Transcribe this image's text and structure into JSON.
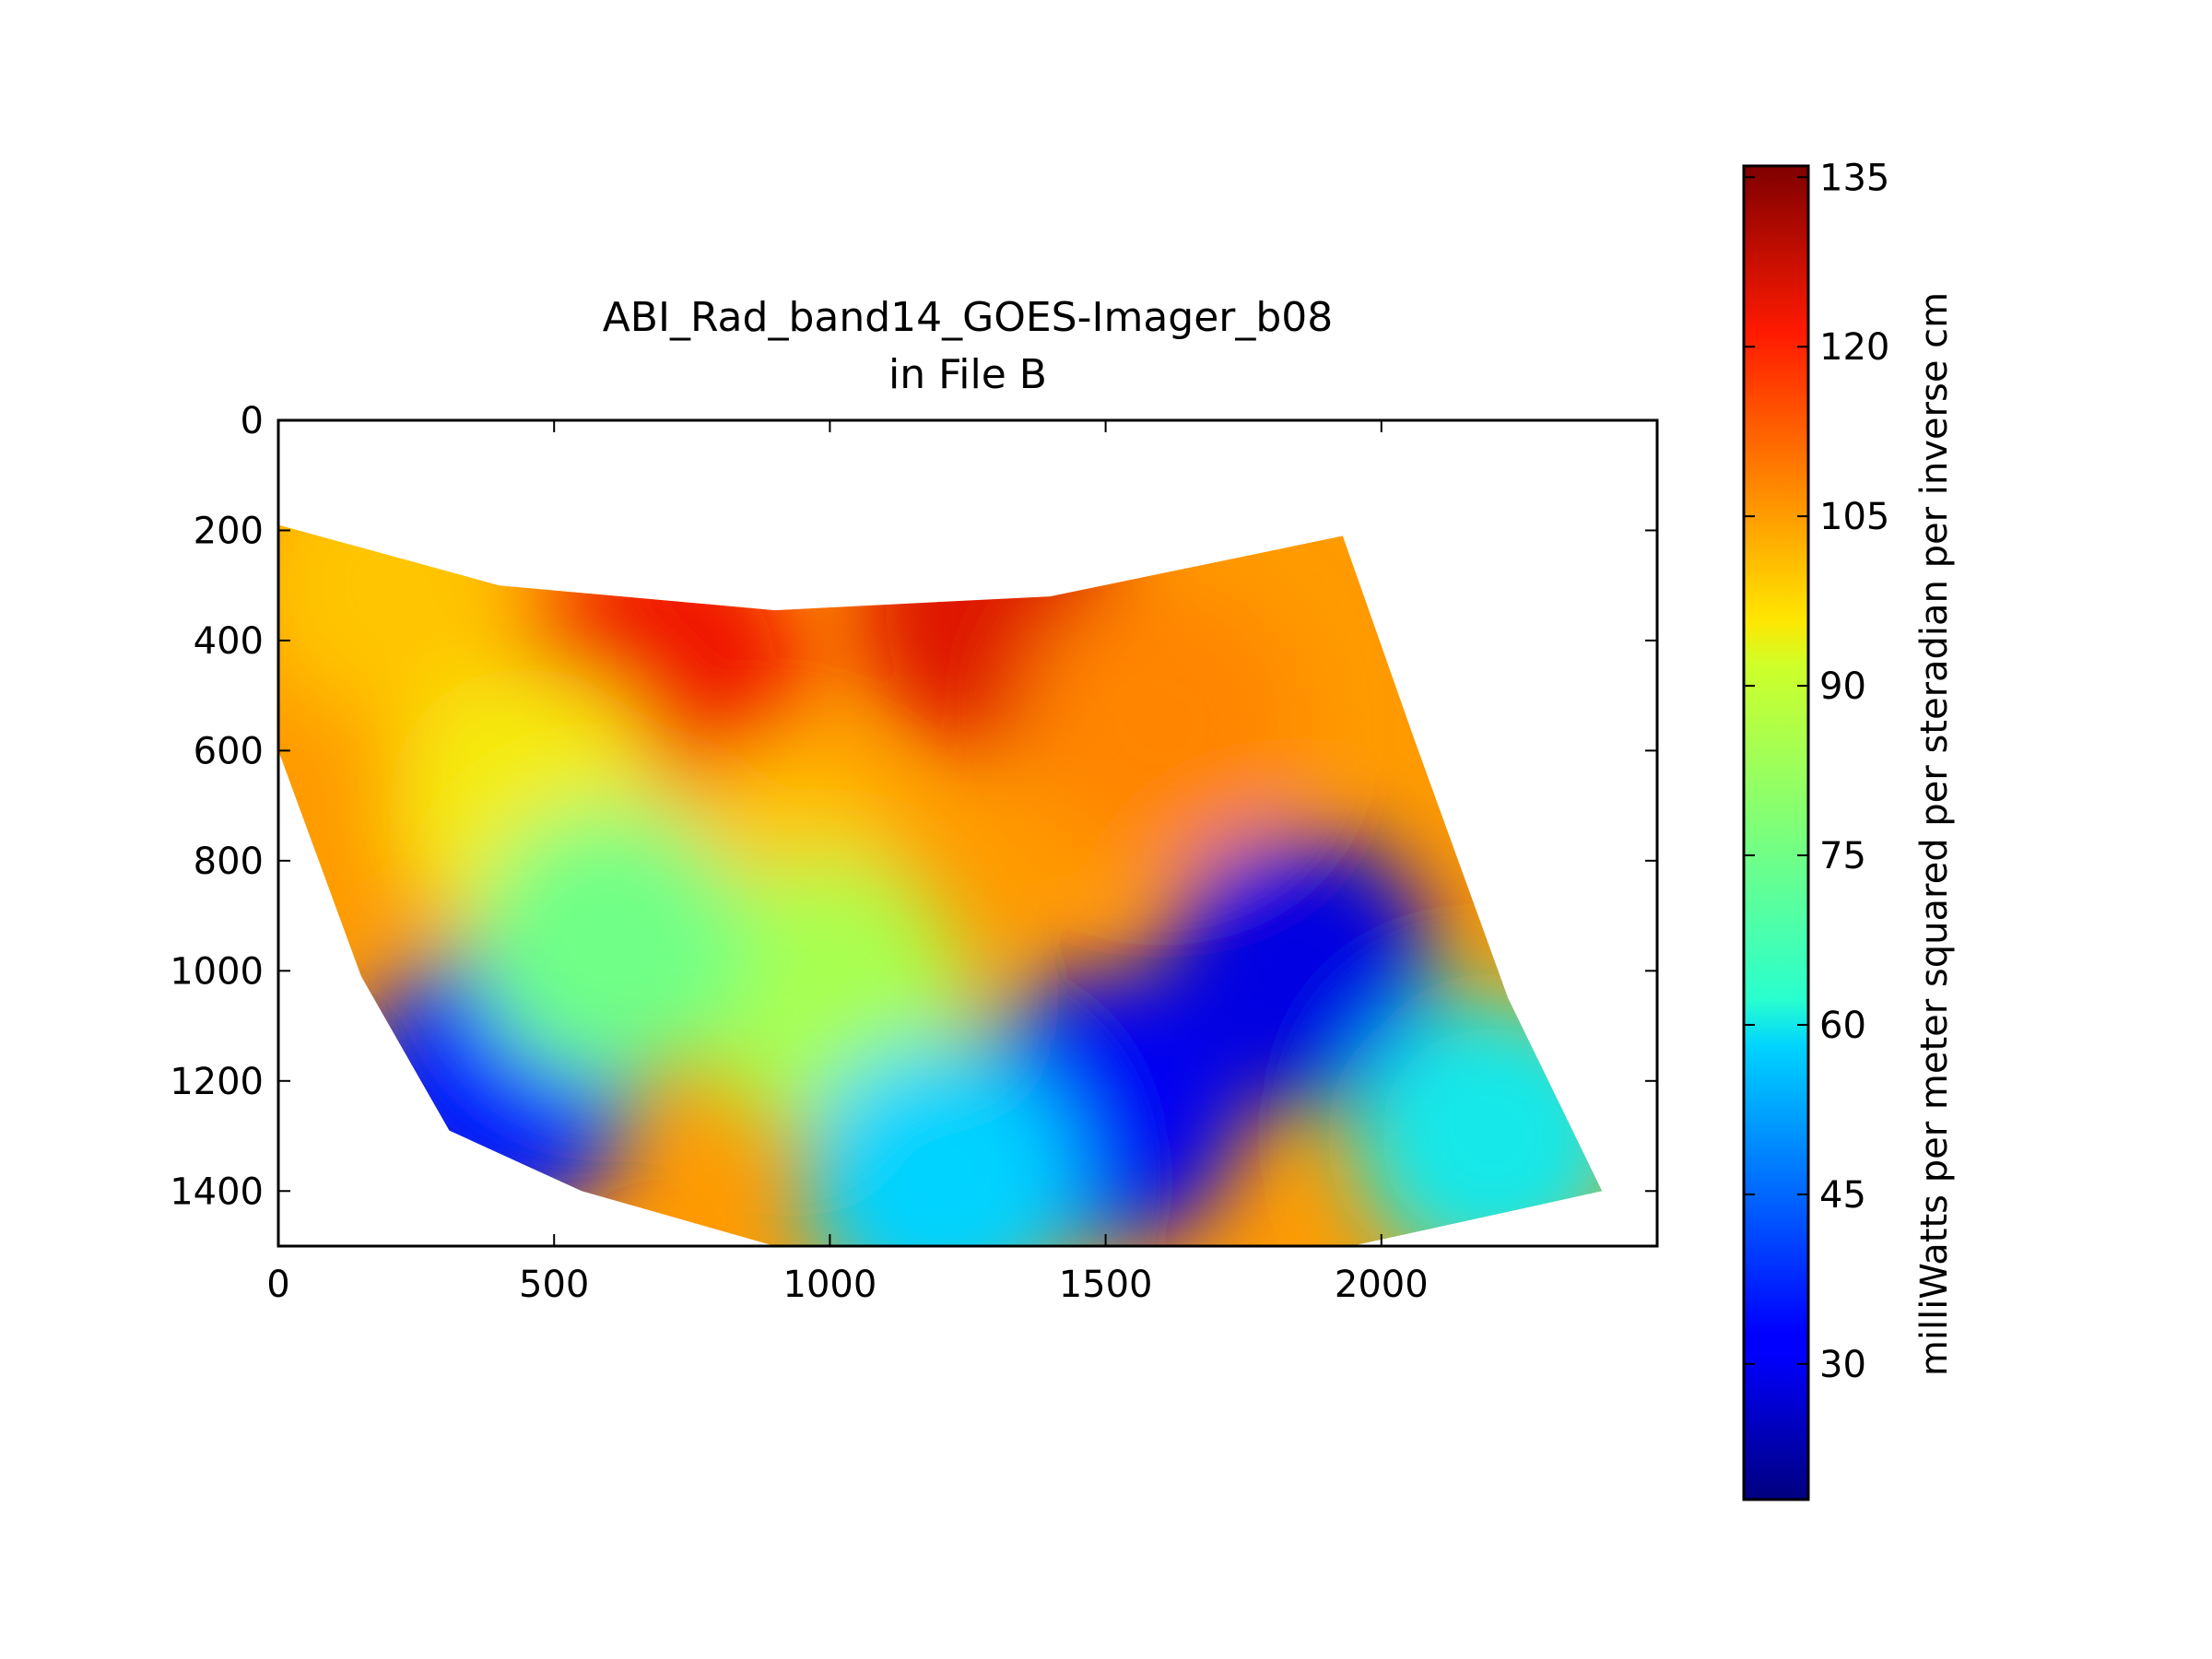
{
  "chart_data": {
    "type": "heatmap",
    "title_line1": "ABI_Rad_band14_GOES-Imager_b08",
    "title_line2": "in File B",
    "xlabel": "",
    "ylabel": "",
    "xlim": [
      0,
      2500
    ],
    "ylim": [
      1500,
      0
    ],
    "x_ticks": [
      0,
      500,
      1000,
      1500,
      2000
    ],
    "y_ticks": [
      0,
      200,
      400,
      600,
      800,
      1000,
      1200,
      1400
    ],
    "grid": false,
    "colormap": "jet",
    "colorbar": {
      "label": "milliWatts per meter squared per steradian per inverse cm",
      "range": [
        18,
        136
      ],
      "ticks": [
        30,
        45,
        60,
        75,
        90,
        105,
        120,
        135
      ]
    },
    "swath_outline": {
      "top_edge": [
        [
          0,
          190
        ],
        [
          400,
          300
        ],
        [
          900,
          345
        ],
        [
          1400,
          320
        ],
        [
          1930,
          210
        ]
      ],
      "right_edge": [
        [
          1930,
          210
        ],
        [
          2060,
          580
        ],
        [
          2230,
          1050
        ],
        [
          2400,
          1400
        ]
      ],
      "bottom_edge": [
        [
          2400,
          1400
        ],
        [
          1900,
          1510
        ],
        [
          1300,
          1530
        ],
        [
          900,
          1500
        ],
        [
          550,
          1400
        ],
        [
          310,
          1290
        ]
      ],
      "left_edge": [
        [
          310,
          1290
        ],
        [
          150,
          1010
        ],
        [
          0,
          600
        ]
      ]
    },
    "value_regions": [
      {
        "x": 500,
        "y": 400,
        "value": 110
      },
      {
        "x": 700,
        "y": 450,
        "value": 123
      },
      {
        "x": 1300,
        "y": 350,
        "value": 125
      },
      {
        "x": 1600,
        "y": 550,
        "value": 108
      },
      {
        "x": 200,
        "y": 300,
        "value": 100
      },
      {
        "x": 450,
        "y": 700,
        "value": 95
      },
      {
        "x": 900,
        "y": 850,
        "value": 100
      },
      {
        "x": 1000,
        "y": 1050,
        "value": 85
      },
      {
        "x": 400,
        "y": 1200,
        "value": 35
      },
      {
        "x": 1500,
        "y": 1250,
        "value": 30
      },
      {
        "x": 1850,
        "y": 1000,
        "value": 28
      },
      {
        "x": 1200,
        "y": 1380,
        "value": 58
      },
      {
        "x": 2200,
        "y": 1300,
        "value": 60
      },
      {
        "x": 600,
        "y": 950,
        "value": 75
      }
    ]
  }
}
